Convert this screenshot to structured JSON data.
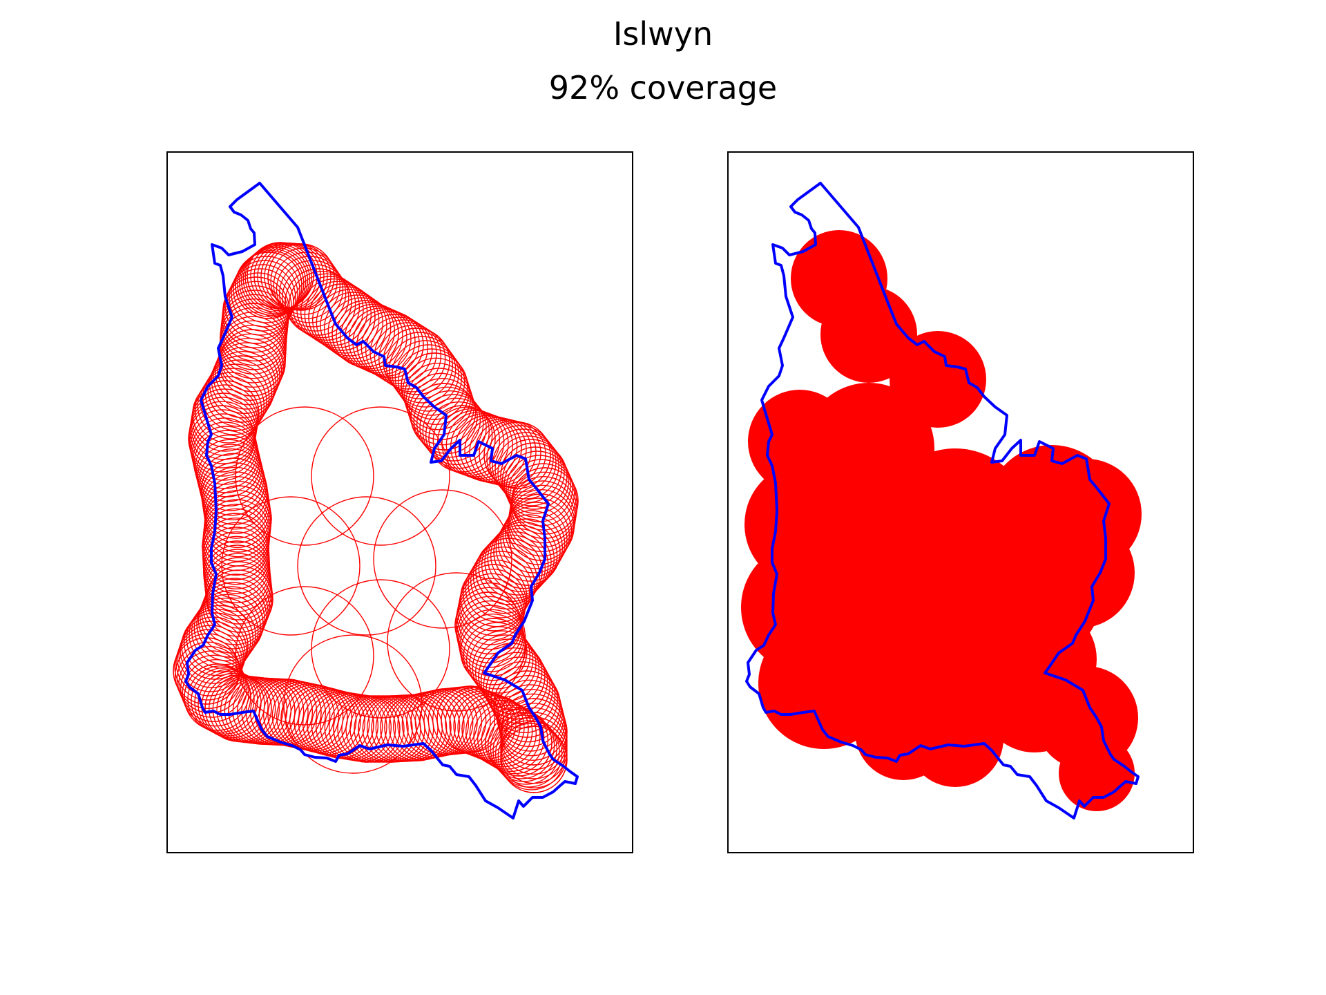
{
  "figure": {
    "title": "Islwyn",
    "subtitle": "92% coverage"
  },
  "colors": {
    "boundary": "#0000ff",
    "circles": "#ff0000",
    "frame": "#000000"
  },
  "panels": [
    {
      "id": "left",
      "style": "circle-outlines"
    },
    {
      "id": "right",
      "style": "filled-union"
    }
  ]
}
